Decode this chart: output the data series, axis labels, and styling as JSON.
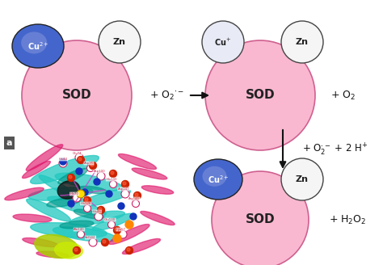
{
  "bg_color": "#ffffff",
  "sod_color": "#f9b8d0",
  "sod_edge_color": "#d06090",
  "cu2_color_dark": "#4466cc",
  "cu2_color_light": "#8899dd",
  "cu1_color": "#e8eaf6",
  "zn_color": "#f5f5f5",
  "zn_edge_color": "#444444",
  "sod_label": "SOD",
  "sod_fontsize": 11,
  "small_fontsize": 7,
  "zn_fontsize": 8,
  "cu2_label": "Cu$^{2+}$",
  "cu1_label": "Cu$^{+}$",
  "zn_label": "Zn",
  "reaction1": "+ O$_2$$^{\\cdot-}$",
  "arrow1": "right",
  "reaction2": "+ O$_2$",
  "reaction3": "+ O$_2^{\\cdot-}$ + 2 H$^{+}$",
  "reaction4": "+ H$_2$O$_2$",
  "label_a": "a"
}
